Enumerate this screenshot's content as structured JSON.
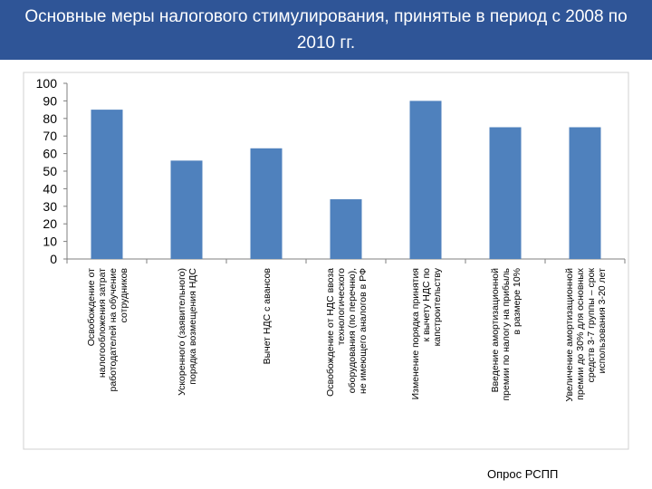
{
  "header": {
    "title": "Основные меры налогового стимулирования, принятые в период с 2008 по 2010 гг."
  },
  "footer": {
    "source": "Опрос РСПП"
  },
  "colors": {
    "header_bg": "#2f5597",
    "bar": "#4f81bd",
    "axis": "#7f7f7f"
  },
  "chart_data": {
    "type": "bar",
    "categories": [
      "Освобождение от налогообложения затрат работодателей на обучение сотрудников",
      "Ускоренного (заявительного) порядка возмещения НДС",
      "Вычет НДС с авансов",
      "Освобождение от НДС ввоза технологического оборудования (по перечню), не имеющего аналогов в РФ",
      "Изменение порядка принятия к вычету НДС по капстроительству",
      "Введение амортизационной премии по налогу на прибыль в размере 10%",
      "Увеличение амортизационной премии до 30% для основных средств 3-7 группы – срок использования 3-20 лет"
    ],
    "values": [
      85,
      56,
      63,
      34,
      90,
      75,
      75
    ],
    "ylim": [
      0,
      100
    ],
    "yticks": [
      0,
      10,
      20,
      30,
      40,
      50,
      60,
      70,
      80,
      90,
      100
    ],
    "legend": "none",
    "grid": false
  }
}
